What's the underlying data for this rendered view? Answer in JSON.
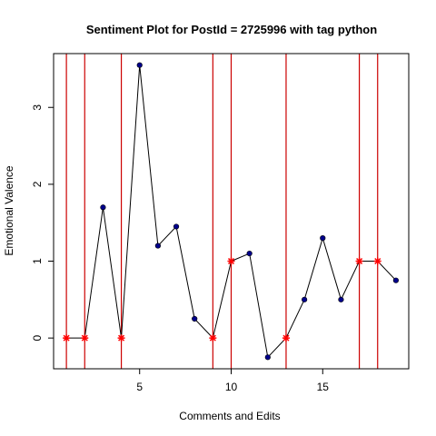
{
  "chart_data": {
    "type": "line",
    "title": "Sentiment Plot for PostId =  2725996  with tag  python",
    "xlabel": "Comments and Edits",
    "ylabel": "Emotional Valence",
    "xlim": [
      0.3,
      19.7
    ],
    "ylim": [
      -0.4,
      3.7
    ],
    "x_ticks": [
      5,
      10,
      15
    ],
    "y_ticks": [
      0,
      1,
      2,
      3
    ],
    "grid": false,
    "legend": "none",
    "x": [
      1,
      2,
      3,
      4,
      5,
      6,
      7,
      8,
      9,
      10,
      11,
      12,
      13,
      14,
      15,
      16,
      17,
      18,
      19
    ],
    "y": [
      0,
      0,
      1.7,
      0,
      3.55,
      1.2,
      1.45,
      0.25,
      0,
      1.0,
      1.1,
      -0.25,
      0,
      0.5,
      1.3,
      0.5,
      1.0,
      1.0,
      0.75
    ],
    "red_marked_x": [
      1,
      2,
      4,
      9,
      10,
      13,
      17,
      18
    ],
    "vertical_lines_x": [
      1,
      2,
      4,
      9,
      10,
      13,
      17,
      18
    ],
    "colors": {
      "line": "#000000",
      "point": "#00008b",
      "marked_point": "#ff0000",
      "vertical_line": "#cc0000"
    }
  }
}
